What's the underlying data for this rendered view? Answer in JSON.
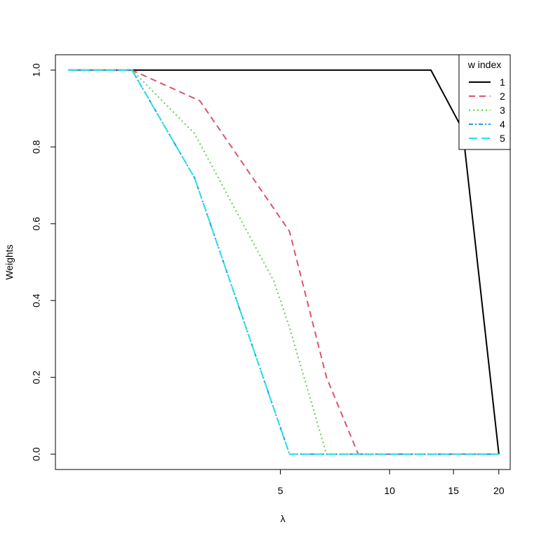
{
  "chart_data": {
    "type": "line",
    "title": "",
    "xlabel": "λ",
    "ylabel": "Weights",
    "x_scale": "log",
    "xlim": [
      1.2,
      21.5
    ],
    "ylim": [
      -0.04,
      1.04
    ],
    "x_ticks": [
      5,
      10,
      15,
      20
    ],
    "x_tick_labels": [
      "5",
      "10",
      "15",
      "20"
    ],
    "y_ticks": [
      0,
      0.2,
      0.4,
      0.6,
      0.8,
      1.0
    ],
    "y_tick_labels": [
      "0.0",
      "0.2",
      "0.4",
      "0.6",
      "0.8",
      "1.0"
    ],
    "grid": false,
    "legend": {
      "title": "w index",
      "position": "top-right"
    },
    "series": [
      {
        "name": "1",
        "color": "#000000",
        "dash": "",
        "x": [
          1.3,
          1.95,
          13.0,
          15.9,
          20.0
        ],
        "y": [
          1.0,
          1.0,
          1.0,
          0.845,
          0.0
        ]
      },
      {
        "name": "2",
        "color": "#DF536B",
        "dash": "9,6",
        "x": [
          1.3,
          1.95,
          3.0,
          5.3,
          6.7,
          8.2,
          20.0
        ],
        "y": [
          1.0,
          1.0,
          0.92,
          0.58,
          0.2,
          0.0,
          0.0
        ]
      },
      {
        "name": "3",
        "color": "#61D04F",
        "dash": "2,4",
        "x": [
          1.3,
          1.95,
          2.9,
          4.8,
          5.3,
          6.7,
          20.0
        ],
        "y": [
          1.0,
          1.0,
          0.835,
          0.45,
          0.33,
          0.0,
          0.0
        ]
      },
      {
        "name": "4",
        "color": "#2297E6",
        "dash": "6,3,2,3",
        "x": [
          1.3,
          1.95,
          2.9,
          5.3,
          20.0
        ],
        "y": [
          1.0,
          1.0,
          0.72,
          0.0,
          0.0
        ]
      },
      {
        "name": "5",
        "color": "#28E2E5",
        "dash": "12,6",
        "x": [
          1.3,
          1.95,
          2.9,
          5.3,
          20.0
        ],
        "y": [
          1.0,
          1.0,
          0.72,
          0.0,
          0.0
        ]
      }
    ]
  }
}
